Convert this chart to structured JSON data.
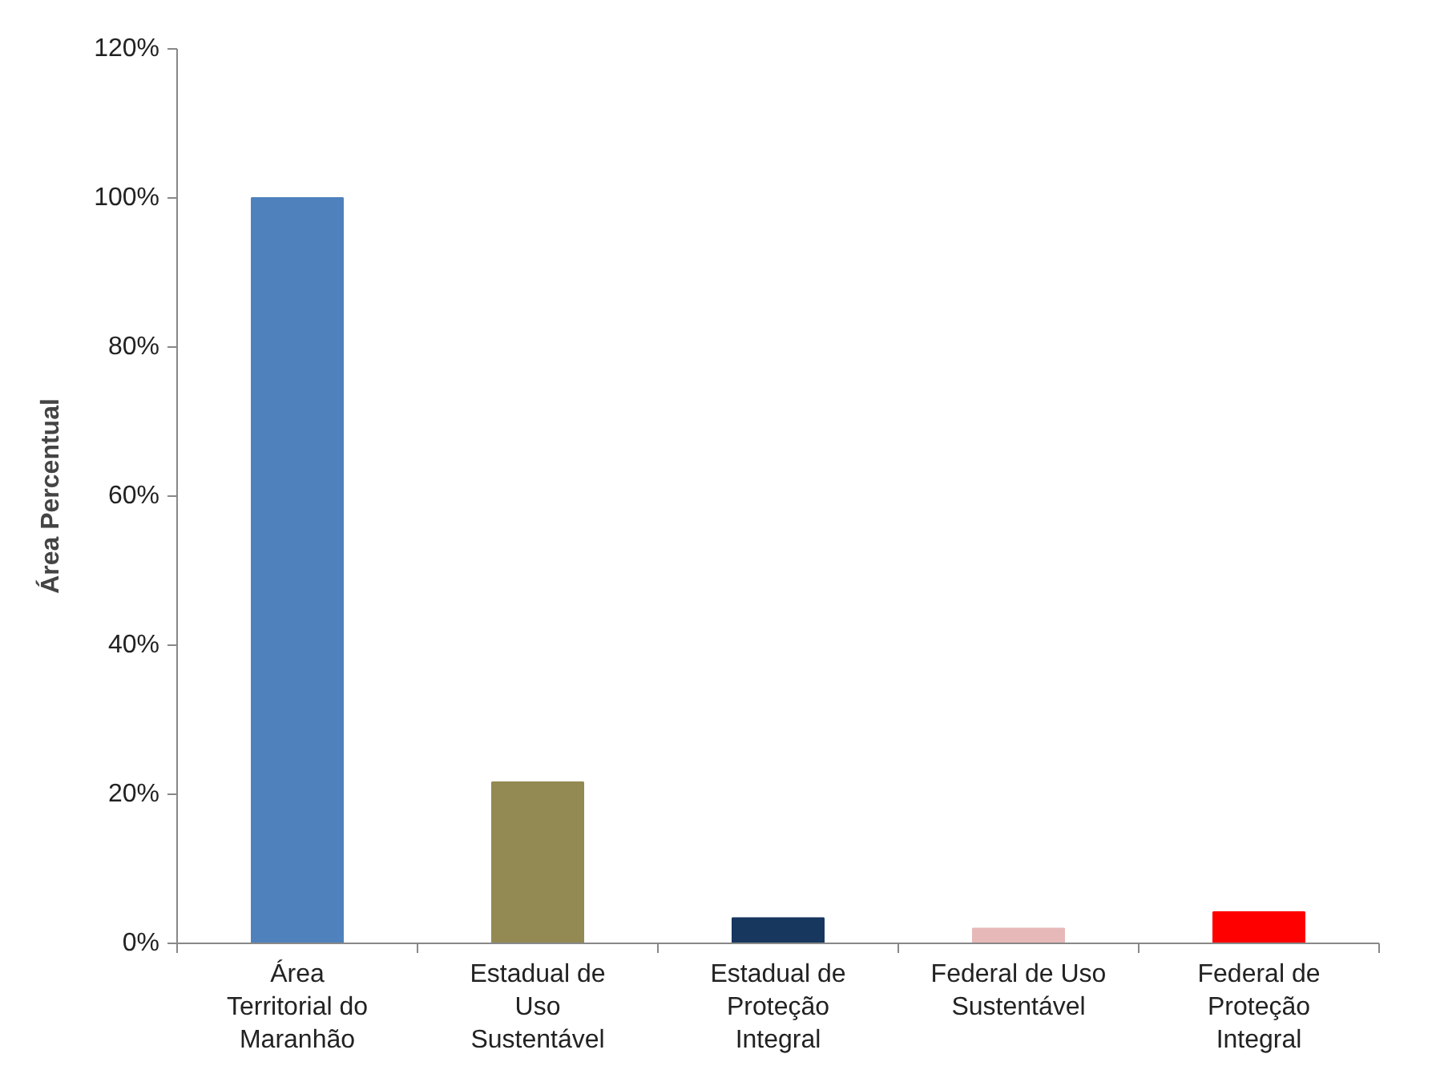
{
  "chart_data": {
    "type": "bar",
    "ylabel": "Área Percentual",
    "categories": [
      "Área Territorial do Maranhão",
      "Estadual de Uso Sustentável",
      "Estadual de Proteção Integral",
      "Federal de Uso Sustentável",
      "Federal de Proteção Integral"
    ],
    "values": [
      100,
      21.6,
      3.4,
      2.0,
      4.2
    ],
    "colors": [
      "#4f81bd",
      "#938953",
      "#17375e",
      "#e6b9b8",
      "#ff0000"
    ],
    "ylim": [
      0,
      120
    ],
    "yticks": [
      {
        "value": 0,
        "label": "0%"
      },
      {
        "value": 20,
        "label": "20%"
      },
      {
        "value": 40,
        "label": "40%"
      },
      {
        "value": 60,
        "label": "60%"
      },
      {
        "value": 80,
        "label": "80%"
      },
      {
        "value": 100,
        "label": "100%"
      },
      {
        "value": 120,
        "label": "120%"
      }
    ],
    "grid": false
  }
}
